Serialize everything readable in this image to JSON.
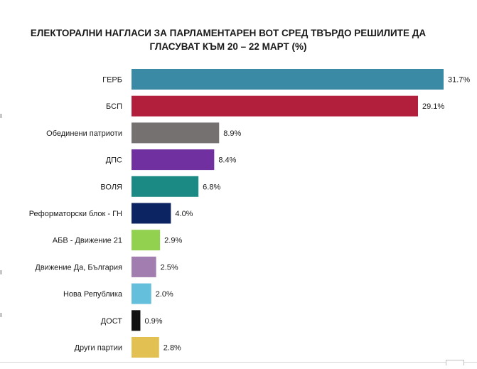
{
  "chart_data": {
    "type": "bar",
    "orientation": "horizontal",
    "title_lines": [
      "ЕЛЕКТОРАЛНИ НАГЛАСИ ЗА ПАРЛАМЕНТАРЕН ВОТ СРЕД ТВЪРДО РЕШИЛИТЕ ДА",
      "ГЛАСУВАТ КЪМ 20 – 22 МАРТ (%)"
    ],
    "categories": [
      "ГЕРБ",
      "БСП",
      "Обединени патриоти",
      "ДПС",
      "ВОЛЯ",
      "Реформаторски блок - ГН",
      "АБВ - Движение 21",
      "Движение Да, България",
      "Нова Република",
      "ДОСТ",
      "Други партии"
    ],
    "values": [
      31.7,
      29.1,
      8.9,
      8.4,
      6.8,
      4.0,
      2.9,
      2.5,
      2.0,
      0.9,
      2.8
    ],
    "value_labels": [
      "31.7%",
      "29.1%",
      "8.9%",
      "8.4%",
      "6.8%",
      "4.0%",
      "2.9%",
      "2.5%",
      "2.0%",
      "0.9%",
      "2.8%"
    ],
    "colors": [
      "#3a8aa6",
      "#b21f3c",
      "#767171",
      "#7030a0",
      "#1c8a84",
      "#0c2461",
      "#92d050",
      "#a27db0",
      "#63bfdc",
      "#111111",
      "#e2c152"
    ],
    "xlim": [
      0,
      31.7
    ],
    "grid": false,
    "legend": "none"
  }
}
